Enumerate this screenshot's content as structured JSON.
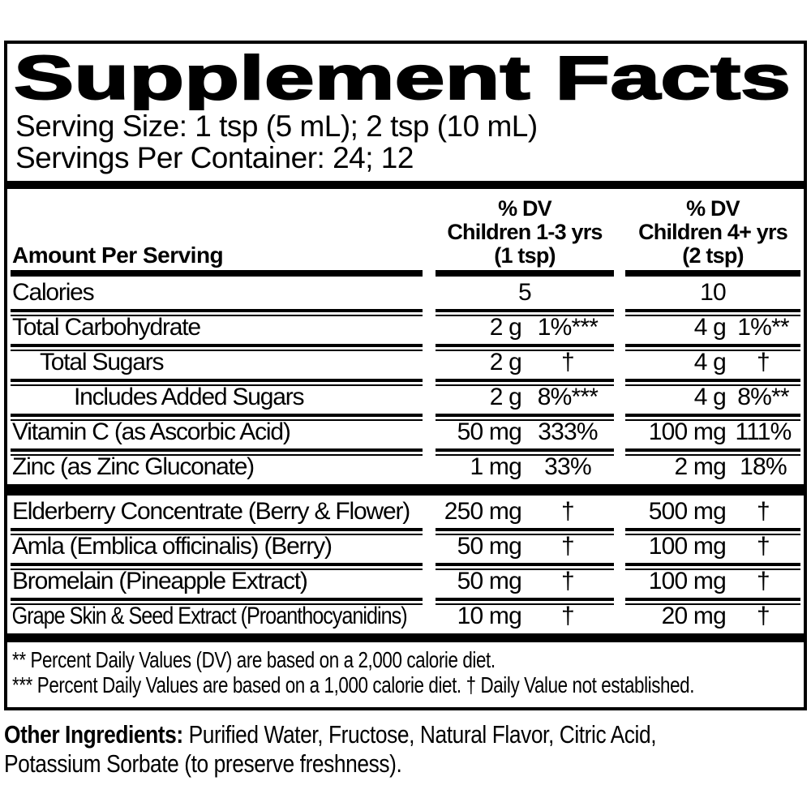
{
  "panel": {
    "title": "Supplement Facts",
    "serving_size": "Serving Size: 1 tsp (5 mL); 2 tsp (10 mL)",
    "servings_per_container": "Servings Per Container: 24; 12"
  },
  "table": {
    "amount_per_serving_label": "Amount Per Serving",
    "columns": {
      "col1": {
        "dv_label": "% DV",
        "group": "Children 1-3 yrs",
        "serving": "(1 tsp)"
      },
      "col2": {
        "dv_label": "% DV",
        "group": "Children 4+ yrs",
        "serving": "(2 tsp)"
      }
    },
    "rows": {
      "0": {
        "label": "Calories",
        "a1": "5",
        "a2": "10"
      },
      "1": {
        "label": "Total Carbohydrate",
        "a1": "2 g",
        "d1": "1%***",
        "a2": "4 g",
        "d2": "1%**"
      },
      "2": {
        "label": "Total Sugars",
        "a1": "2 g",
        "d1": "†",
        "a2": "4 g",
        "d2": "†"
      },
      "3": {
        "label": "Includes Added Sugars",
        "a1": "2 g",
        "d1": "8%***",
        "a2": "4 g",
        "d2": "8%**"
      },
      "4": {
        "label": "Vitamin C (as Ascorbic Acid)",
        "a1": "50 mg",
        "d1": "333%",
        "a2": "100 mg",
        "d2": "111%"
      },
      "5": {
        "label": "Zinc (as Zinc Gluconate)",
        "a1": "1 mg",
        "d1": "33%",
        "a2": "2 mg",
        "d2": "18%"
      },
      "6": {
        "label": "Elderberry Concentrate (Berry & Flower)",
        "a1": "250 mg",
        "d1": "†",
        "a2": "500 mg",
        "d2": "†"
      },
      "7": {
        "label": "Amla (Emblica officinalis) (Berry)",
        "a1": "50 mg",
        "d1": "†",
        "a2": "100 mg",
        "d2": "†"
      },
      "8": {
        "label": "Bromelain (Pineapple Extract)",
        "a1": "50 mg",
        "d1": "†",
        "a2": "100 mg",
        "d2": "†"
      },
      "9": {
        "label": "Grape Skin & Seed Extract (Proanthocyanidins)",
        "a1": "10 mg",
        "d1": "†",
        "a2": "20 mg",
        "d2": "†"
      }
    },
    "footnotes": {
      "line1": "** Percent Daily Values (DV) are based on a 2,000 calorie diet.",
      "line2": "*** Percent Daily Values are based on a 1,000 calorie diet. † Daily Value not established."
    }
  },
  "other_ingredients": {
    "label": "Other Ingredients:",
    "line1_rest": " Purified Water, Fructose, Natural Flavor, Citric Acid,",
    "line2": "Potassium Sorbate (to preserve freshness)."
  },
  "colors": {
    "ink": "#000000",
    "background": "#ffffff"
  }
}
